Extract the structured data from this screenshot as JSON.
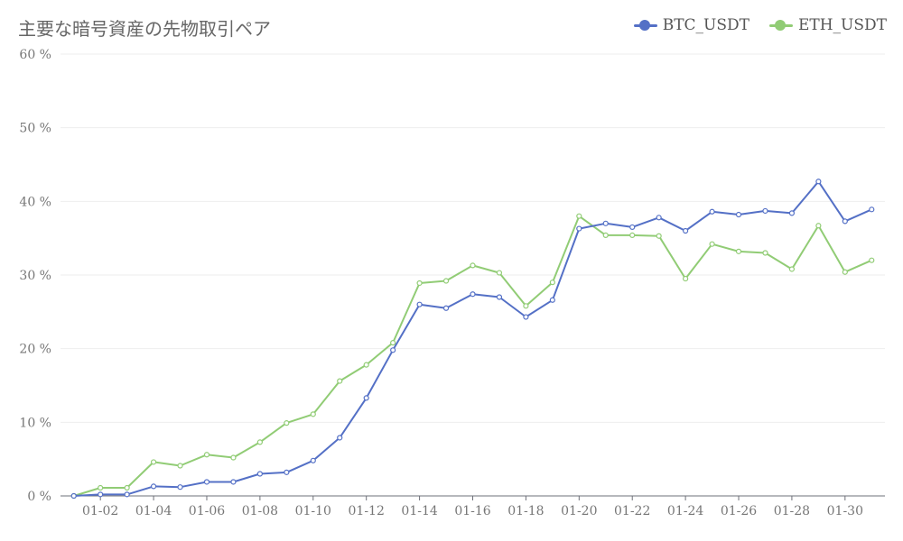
{
  "chart_data": {
    "type": "line",
    "title": "主要な暗号資産の先物取引ペア",
    "xlabel": "",
    "ylabel": "",
    "ylim": [
      0,
      60
    ],
    "y_ticks": [
      "0 %",
      "10 %",
      "20 %",
      "30 %",
      "40 %",
      "50 %",
      "60 %"
    ],
    "y_tick_values": [
      0,
      10,
      20,
      30,
      40,
      50,
      60
    ],
    "grid": true,
    "legend_position": "top-right",
    "x": [
      "01-01",
      "01-02",
      "01-03",
      "01-04",
      "01-05",
      "01-06",
      "01-07",
      "01-08",
      "01-09",
      "01-10",
      "01-11",
      "01-12",
      "01-13",
      "01-14",
      "01-15",
      "01-16",
      "01-17",
      "01-18",
      "01-19",
      "01-20",
      "01-21",
      "01-22",
      "01-23",
      "01-24",
      "01-25",
      "01-26",
      "01-27",
      "01-28",
      "01-29",
      "01-30",
      "01-31"
    ],
    "x_tick_labels": [
      "01-02",
      "01-04",
      "01-06",
      "01-08",
      "01-10",
      "01-12",
      "01-14",
      "01-16",
      "01-18",
      "01-20",
      "01-22",
      "01-24",
      "01-26",
      "01-28",
      "01-30"
    ],
    "series": [
      {
        "name": "BTC_USDT",
        "color": "#5470c6",
        "values": [
          0,
          0.2,
          0.2,
          1.3,
          1.2,
          1.9,
          1.9,
          3.0,
          3.2,
          4.8,
          7.9,
          13.3,
          19.8,
          26.0,
          25.5,
          27.4,
          27.0,
          24.3,
          26.6,
          36.3,
          37.0,
          36.5,
          37.8,
          36.0,
          38.6,
          38.2,
          38.7,
          38.4,
          42.7,
          37.3,
          38.9
        ]
      },
      {
        "name": "ETH_USDT",
        "color": "#91cc75",
        "values": [
          0,
          1.1,
          1.1,
          4.6,
          4.1,
          5.6,
          5.2,
          7.3,
          9.9,
          11.1,
          15.6,
          17.8,
          20.8,
          28.9,
          29.2,
          31.3,
          30.3,
          25.8,
          29.0,
          38.0,
          35.4,
          35.4,
          35.3,
          29.5,
          34.2,
          33.2,
          33.0,
          30.8,
          36.7,
          30.4,
          32.0
        ]
      }
    ]
  }
}
